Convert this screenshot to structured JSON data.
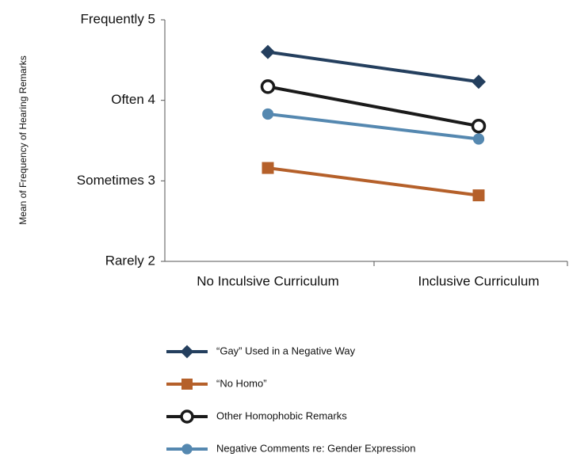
{
  "chart_data": {
    "type": "line",
    "y_label": "Mean of Frequency of Hearing Remarks",
    "categories": [
      "No Inculsive Curriculum",
      "Inclusive Curriculum"
    ],
    "ylim": [
      2,
      5
    ],
    "yticks": [
      {
        "value": 2,
        "label": "Rarely 2"
      },
      {
        "value": 3,
        "label": "Sometimes 3"
      },
      {
        "value": 4,
        "label": "Often 4"
      },
      {
        "value": 5,
        "label": "Frequently 5"
      }
    ],
    "grid": false,
    "legend": "bottom",
    "series": [
      {
        "name": "“Gay” Used in a Negative Way",
        "color": "#243f5e",
        "marker": "diamond",
        "values": [
          4.6,
          4.23
        ]
      },
      {
        "name": "“No Homo”",
        "color": "#b5602a",
        "marker": "square",
        "values": [
          3.16,
          2.82
        ]
      },
      {
        "name": "Other Homophobic Remarks",
        "color": "#1a1a1a",
        "marker": "open-circle",
        "values": [
          4.17,
          3.68
        ]
      },
      {
        "name": "Negative Comments re: Gender Expression",
        "color": "#5588b0",
        "marker": "circle",
        "values": [
          3.83,
          3.52
        ]
      }
    ]
  }
}
